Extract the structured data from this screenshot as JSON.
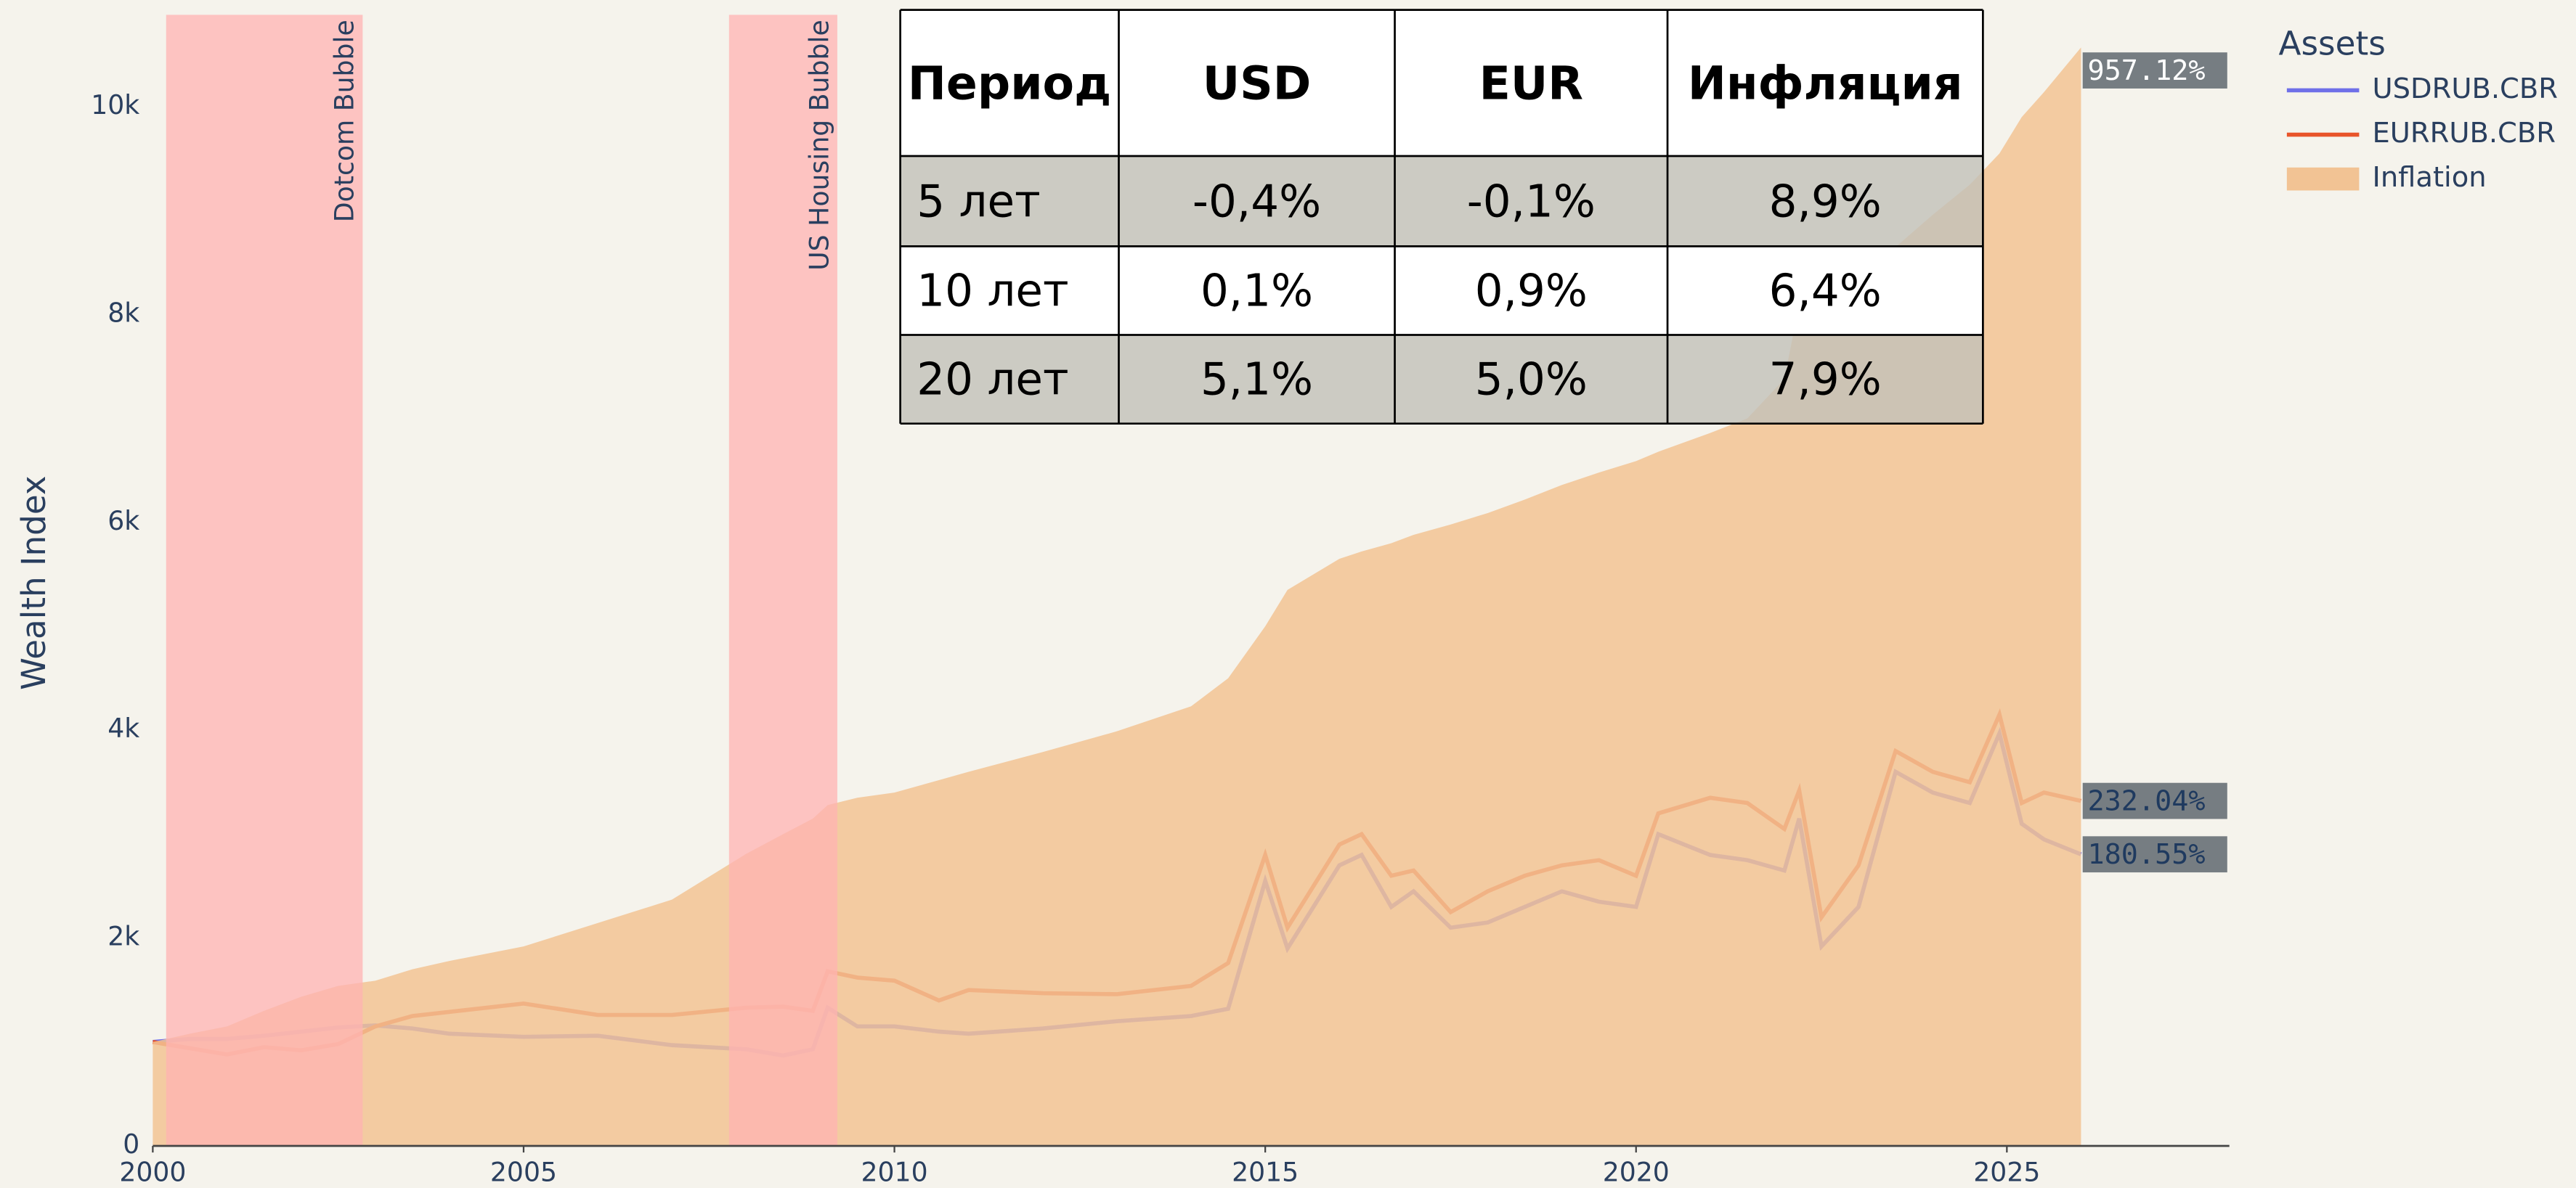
{
  "chart_data": {
    "type": "line",
    "y_label": "Wealth Index",
    "legend_title": "Assets",
    "legend": "right",
    "x": [
      2000,
      2000.5,
      2001,
      2001.5,
      2002,
      2002.5,
      2003,
      2003.5,
      2004,
      2005,
      2006,
      2007,
      2008,
      2008.5,
      2008.9,
      2009.1,
      2009.5,
      2010,
      2010.6,
      2011,
      2012,
      2013,
      2014,
      2014.5,
      2015,
      2015.3,
      2016,
      2016.3,
      2016.7,
      2017,
      2017.5,
      2018,
      2018.5,
      2019,
      2019.5,
      2020,
      2020.3,
      2021,
      2021.5,
      2022,
      2022.2,
      2022.5,
      2023,
      2023.5,
      2024,
      2024.5,
      2024.9,
      2025.2,
      2025.5,
      2026
    ],
    "series": [
      {
        "name": "USDRUB.CBR",
        "color": "#6f6fe8",
        "kind": "line",
        "end_label": "180.55%",
        "values": [
          1000,
          1030,
          1030,
          1060,
          1100,
          1140,
          1160,
          1130,
          1080,
          1050,
          1060,
          970,
          930,
          870,
          930,
          1330,
          1150,
          1150,
          1100,
          1080,
          1130,
          1200,
          1250,
          1320,
          2550,
          1900,
          2700,
          2800,
          2300,
          2450,
          2100,
          2150,
          2300,
          2450,
          2350,
          2300,
          3000,
          2800,
          2750,
          2650,
          3150,
          1920,
          2300,
          3600,
          3400,
          3300,
          3970,
          3100,
          2950,
          2806
        ]
      },
      {
        "name": "EURRUB.CBR",
        "color": "#e8542a",
        "kind": "line",
        "end_label": "232.04%",
        "values": [
          1000,
          940,
          880,
          950,
          920,
          980,
          1150,
          1250,
          1290,
          1370,
          1260,
          1260,
          1330,
          1340,
          1300,
          1680,
          1620,
          1590,
          1400,
          1500,
          1470,
          1460,
          1540,
          1760,
          2800,
          2100,
          2900,
          3000,
          2600,
          2650,
          2250,
          2450,
          2600,
          2700,
          2750,
          2600,
          3200,
          3350,
          3300,
          3050,
          3420,
          2200,
          2700,
          3800,
          3600,
          3500,
          4150,
          3300,
          3400,
          3320
        ]
      },
      {
        "name": "Inflation",
        "color": "#f2c394",
        "kind": "area",
        "end_label": "957.12%",
        "values": [
          1000,
          1080,
          1150,
          1300,
          1435,
          1540,
          1590,
          1700,
          1780,
          1920,
          2145,
          2370,
          2810,
          3000,
          3150,
          3280,
          3350,
          3400,
          3520,
          3600,
          3790,
          3990,
          4230,
          4500,
          5000,
          5350,
          5650,
          5720,
          5800,
          5880,
          5980,
          6090,
          6220,
          6360,
          6480,
          6590,
          6680,
          6860,
          7000,
          7380,
          8100,
          8200,
          8410,
          8650,
          8960,
          9250,
          9550,
          9900,
          10140,
          10570
        ]
      }
    ],
    "regions": [
      {
        "label": "Dotcom Bubble",
        "start": 2000.18,
        "end": 2002.83,
        "color": "#ffb3b3"
      },
      {
        "label": "US Housing Bubble",
        "start": 2007.77,
        "end": 2009.23,
        "color": "#ffb3b3"
      }
    ],
    "xlim": [
      2000,
      2028
    ],
    "xticks": [
      2000,
      2005,
      2010,
      2015,
      2020,
      2025
    ],
    "ylim": [
      0,
      10900
    ],
    "yticks": [
      0,
      {
        "value": 2000,
        "label": "2k"
      },
      {
        "value": 4000,
        "label": "4k"
      },
      {
        "value": 6000,
        "label": "6k"
      },
      {
        "value": 8000,
        "label": "8k"
      },
      {
        "value": 10000,
        "label": "10k"
      }
    ]
  },
  "table": {
    "header": [
      "Период",
      "USD",
      "EUR",
      "Инфляция"
    ],
    "rows": [
      [
        "5 лет",
        "-0,4%",
        "-0,1%",
        "8,9%"
      ],
      [
        "10 лет",
        "0,1%",
        "0,9%",
        "6,4%"
      ],
      [
        "20 лет",
        "5,1%",
        "5,0%",
        "7,9%"
      ]
    ]
  }
}
